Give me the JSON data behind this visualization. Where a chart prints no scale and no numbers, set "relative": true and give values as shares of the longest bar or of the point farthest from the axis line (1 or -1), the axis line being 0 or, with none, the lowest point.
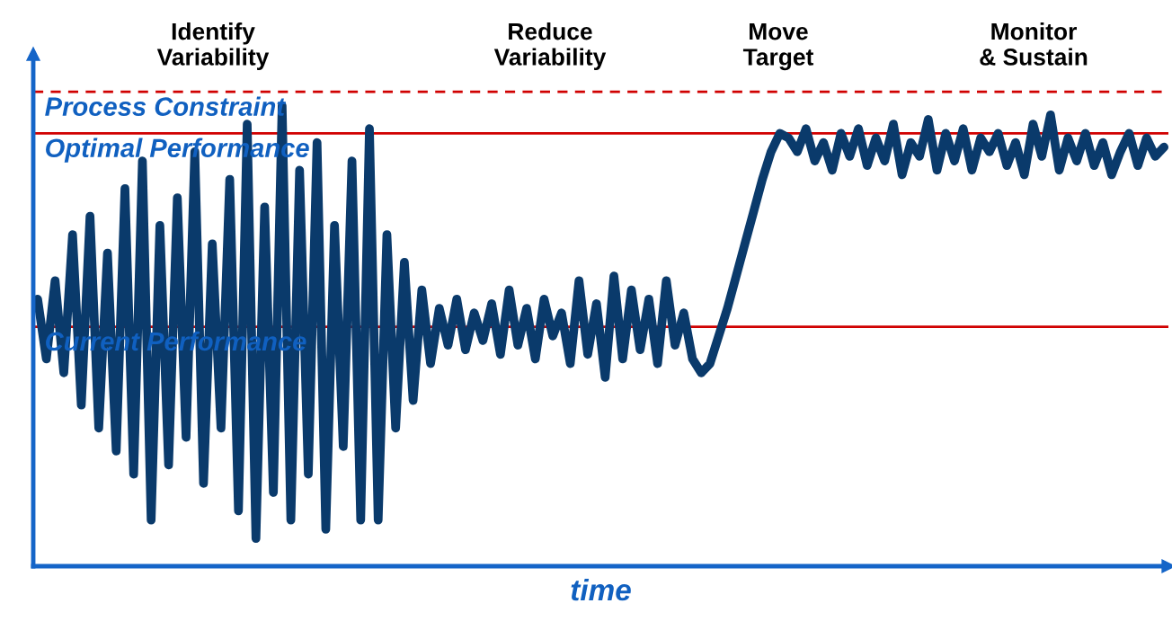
{
  "chart_data": {
    "type": "line",
    "relative": true,
    "xlabel": "time",
    "marker": "none",
    "line_style": "solid",
    "annotations": [
      "Identify\nVariability",
      "Reduce\nVariability",
      "Move\nTarget",
      "Monitor\n& Sustain"
    ],
    "ref_lines": [
      {
        "axis": "y",
        "value": 1.03,
        "label": "Process Constraint",
        "color": "#d00000",
        "line_style": "dashed"
      },
      {
        "axis": "y",
        "value": 0.94,
        "label": "Optimal Performance",
        "color": "#d00000",
        "line_style": "solid"
      },
      {
        "axis": "y",
        "value": 0.52,
        "label": "Current Performance",
        "color": "#d00000",
        "line_style": "solid"
      }
    ],
    "categories": [
      null,
      null,
      null,
      null,
      null,
      null,
      null,
      null,
      null,
      null,
      null,
      null,
      null,
      null,
      null,
      null,
      null,
      null,
      null,
      null,
      null,
      null,
      null,
      null,
      null,
      null,
      null,
      null,
      null,
      null,
      null,
      null,
      null,
      null,
      null,
      null,
      null,
      null,
      null,
      null,
      null,
      null,
      null,
      null,
      null,
      null,
      null,
      null,
      null,
      null,
      null,
      null,
      null,
      null,
      null,
      null,
      null,
      null,
      null,
      null,
      null,
      null,
      null,
      null,
      null,
      null,
      null,
      null,
      null,
      null,
      null,
      null,
      null,
      null,
      null,
      null,
      null,
      null,
      null,
      null,
      null,
      null,
      null,
      null,
      null,
      null,
      null,
      null,
      null,
      null,
      null,
      null,
      null,
      null,
      null,
      null,
      null,
      null,
      null,
      null,
      null,
      null,
      null,
      null,
      null,
      null,
      null,
      null,
      null,
      null,
      null,
      null,
      null,
      null,
      null,
      null,
      null,
      null,
      null,
      null,
      null,
      null,
      null,
      null,
      null,
      null,
      null,
      null,
      null,
      null
    ],
    "series": [
      {
        "color": "#0a3a6b",
        "values": [
          0.58,
          0.45,
          0.62,
          0.42,
          0.72,
          0.35,
          0.76,
          0.3,
          0.68,
          0.25,
          0.82,
          0.2,
          0.88,
          0.1,
          0.74,
          0.22,
          0.8,
          0.28,
          0.9,
          0.18,
          0.7,
          0.3,
          0.84,
          0.12,
          0.96,
          0.06,
          0.78,
          0.16,
          1.0,
          0.1,
          0.86,
          0.2,
          0.92,
          0.08,
          0.74,
          0.26,
          0.88,
          0.1,
          0.95,
          0.1,
          0.72,
          0.3,
          0.66,
          0.36,
          0.6,
          0.44,
          0.56,
          0.48,
          0.58,
          0.47,
          0.55,
          0.49,
          0.57,
          0.46,
          0.6,
          0.48,
          0.56,
          0.45,
          0.58,
          0.5,
          0.55,
          0.44,
          0.62,
          0.46,
          0.57,
          0.41,
          0.63,
          0.45,
          0.6,
          0.47,
          0.58,
          0.44,
          0.62,
          0.48,
          0.55,
          0.45,
          0.42,
          0.44,
          0.5,
          0.56,
          0.63,
          0.7,
          0.77,
          0.84,
          0.9,
          0.94,
          0.93,
          0.9,
          0.95,
          0.88,
          0.92,
          0.86,
          0.94,
          0.89,
          0.95,
          0.87,
          0.93,
          0.88,
          0.96,
          0.85,
          0.92,
          0.89,
          0.97,
          0.86,
          0.94,
          0.88,
          0.95,
          0.86,
          0.93,
          0.9,
          0.94,
          0.87,
          0.92,
          0.85,
          0.96,
          0.89,
          0.98,
          0.86,
          0.93,
          0.88,
          0.94,
          0.87,
          0.92,
          0.85,
          0.9,
          0.94,
          0.87,
          0.93,
          0.89,
          0.91
        ]
      }
    ]
  }
}
